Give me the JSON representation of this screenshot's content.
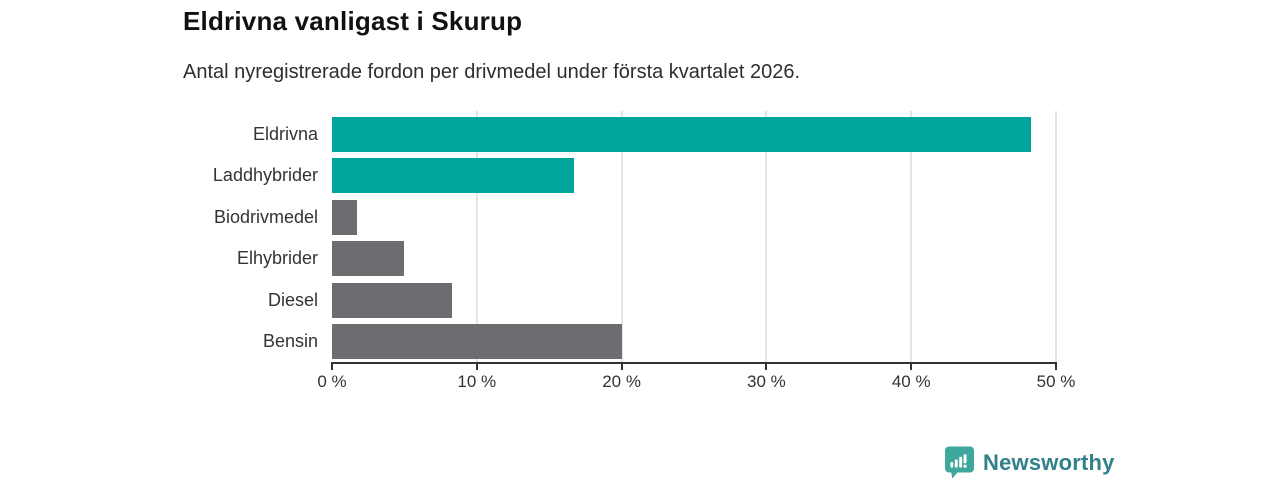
{
  "chart_data": {
    "type": "bar",
    "orientation": "horizontal",
    "title": "Eldrivna vanligast i Skurup",
    "subtitle": "Antal nyregistrerade fordon per drivmedel under första kvartalet 2026.",
    "categories": [
      "Eldrivna",
      "Laddhybrider",
      "Biodrivmedel",
      "Elhybrider",
      "Diesel",
      "Bensin"
    ],
    "values": [
      48.3,
      16.7,
      1.7,
      5.0,
      8.3,
      20.0
    ],
    "unit": "%",
    "xlabel": "",
    "ylabel": "",
    "xlim": [
      0,
      50
    ],
    "xticks": [
      0,
      10,
      20,
      30,
      40,
      50
    ],
    "xtick_suffix": " %",
    "grid": "vertical",
    "legend": "none",
    "bar_colors": [
      "#00a59c",
      "#00a59c",
      "#6c6c71",
      "#6c6c71",
      "#6c6c71",
      "#6c6c71"
    ],
    "colors": {
      "accent_teal": "#00a59c",
      "neutral_gray": "#6c6c71",
      "gridline": "#e4e4e4",
      "axis": "#333333",
      "label_text": "#333333",
      "title_text": "#111111"
    }
  },
  "branding": {
    "logo_text": "Newsworthy",
    "logo_icon": "newsworthy-speech-bubble-chart-icon",
    "logo_text_color": "#31808a",
    "logo_mark_color": "#3ea79e"
  }
}
